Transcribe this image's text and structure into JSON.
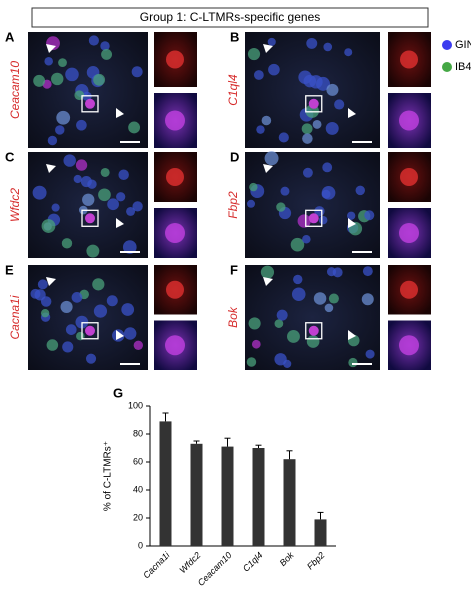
{
  "header": {
    "title": "Group 1: C-LTMRs-specific genes"
  },
  "legend": [
    {
      "label": "GIN",
      "color": "#3b3bef"
    },
    {
      "label": "IB4",
      "color": "#45a845"
    }
  ],
  "panels": [
    {
      "letter": "A",
      "gene": "Ceacam10"
    },
    {
      "letter": "B",
      "gene": "C1ql4"
    },
    {
      "letter": "C",
      "gene": "Wfdc2"
    },
    {
      "letter": "D",
      "gene": "Fbp2"
    },
    {
      "letter": "E",
      "gene": "Cacna1i"
    },
    {
      "letter": "F",
      "gene": "Bok"
    }
  ],
  "chart_data": {
    "type": "bar",
    "panel": "G",
    "ylabel": "% of C-LTMRs⁺",
    "categories": [
      "Cacna1i",
      "Wfdc2",
      "Ceacam10",
      "C1ql4",
      "Bok",
      "Fbp2"
    ],
    "values": [
      89,
      73,
      71,
      70,
      62,
      19
    ],
    "errors": [
      6,
      2,
      6,
      2,
      6,
      5
    ],
    "color": "#333333",
    "ylim": [
      0,
      100
    ],
    "yticks": [
      0,
      20,
      40,
      60,
      80,
      100
    ]
  }
}
